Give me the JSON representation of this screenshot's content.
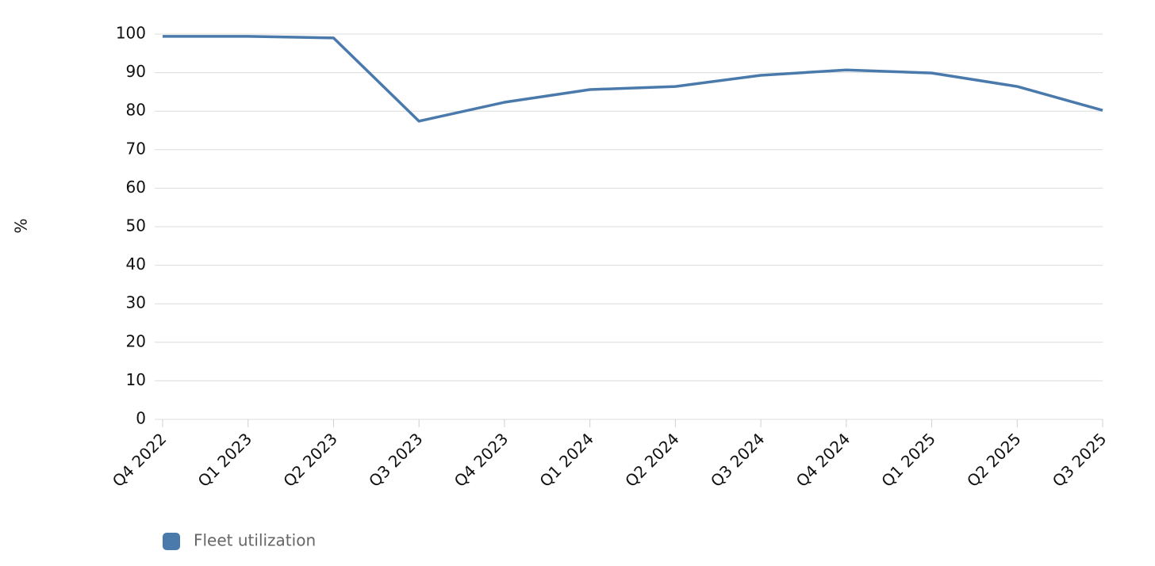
{
  "chart_data": {
    "type": "line",
    "y_label": "%",
    "categories": [
      "Q4 2022",
      "Q1 2023",
      "Q2 2023",
      "Q3 2023",
      "Q4 2023",
      "Q1 2024",
      "Q2 2024",
      "Q3 2024",
      "Q4 2024",
      "Q1 2025",
      "Q2 2025",
      "Q3 2025"
    ],
    "series": [
      {
        "name": "Fleet utilization",
        "color": "#4a7aab",
        "values": [
          99.4,
          99.4,
          99.0,
          77.4,
          82.3,
          85.6,
          86.4,
          89.3,
          90.7,
          89.9,
          86.4,
          80.2
        ]
      }
    ],
    "ylim": [
      0,
      100
    ],
    "yticks": [
      0,
      10,
      20,
      30,
      40,
      50,
      60,
      70,
      80,
      90,
      100
    ],
    "grid": true,
    "legend": "bottom-left"
  }
}
